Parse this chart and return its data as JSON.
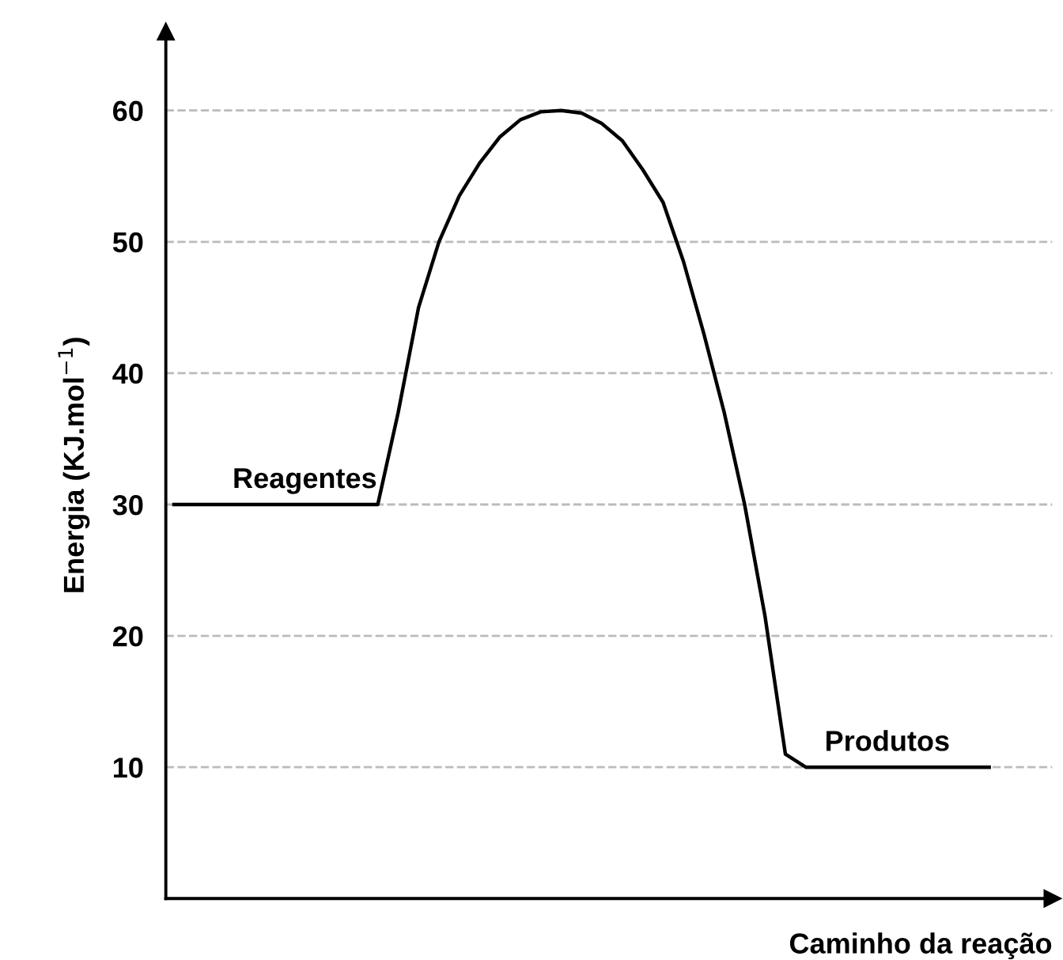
{
  "chart_data": {
    "type": "line",
    "xlabel": "Caminho da reação",
    "ylabel": "Energia (KJ.mol$^{−1}$)",
    "categories": [
      null,
      null,
      null,
      null,
      null,
      null,
      null,
      null,
      null,
      null,
      null,
      null,
      null,
      null,
      null,
      null,
      null,
      null,
      null,
      null,
      null,
      null,
      null,
      null,
      null,
      null,
      null,
      null,
      null,
      null,
      null,
      null,
      null,
      null,
      null,
      null,
      null,
      null,
      null,
      null,
      null
    ],
    "series": [
      {
        "color": "#000000",
        "values": [
          30,
          30,
          30,
          30,
          30,
          30,
          30,
          30,
          30,
          30,
          30,
          37,
          45,
          50,
          53.5,
          56,
          58,
          59.3,
          59.9,
          60,
          59.8,
          59,
          57.7,
          55.5,
          53,
          48.5,
          43,
          37,
          30,
          21.5,
          11,
          10,
          10,
          10,
          10,
          10,
          10,
          10,
          10,
          10,
          10
        ]
      }
    ],
    "annotations": [
      {
        "text": "Reagentes",
        "y": 30
      },
      {
        "text": "Produtos",
        "y": 10
      }
    ],
    "ylim": [
      0,
      66
    ],
    "yticks": [
      10,
      20,
      30,
      40,
      50,
      60
    ],
    "grid": "y",
    "marker": "none",
    "line_style": "solid",
    "legend": false
  }
}
